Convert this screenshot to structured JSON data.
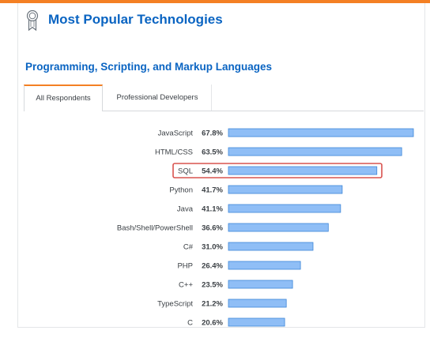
{
  "header": {
    "title": "Most Popular Technologies"
  },
  "section": {
    "title": "Programming, Scripting, and Markup Languages"
  },
  "tabs": [
    {
      "label": "All Respondents",
      "active": true
    },
    {
      "label": "Professional Developers",
      "active": false
    }
  ],
  "colors": {
    "accent": "#f48024",
    "title": "#0a64c2",
    "bar": "#8fbef6",
    "bar_border": "#3d86d8",
    "highlight_box": "#d9534f"
  },
  "chart_data": {
    "type": "bar",
    "orientation": "horizontal",
    "categories": [
      "JavaScript",
      "HTML/CSS",
      "SQL",
      "Python",
      "Java",
      "Bash/Shell/PowerShell",
      "C#",
      "PHP",
      "C++",
      "TypeScript",
      "C"
    ],
    "values": [
      67.8,
      63.5,
      54.4,
      41.7,
      41.1,
      36.6,
      31.0,
      26.4,
      23.5,
      21.2,
      20.6
    ],
    "value_labels": [
      "67.8%",
      "63.5%",
      "54.4%",
      "41.7%",
      "41.1%",
      "36.6%",
      "31.0%",
      "26.4%",
      "23.5%",
      "21.2%",
      "20.6%"
    ],
    "highlighted_category": "SQL",
    "xlim": [
      0,
      67.8
    ]
  }
}
